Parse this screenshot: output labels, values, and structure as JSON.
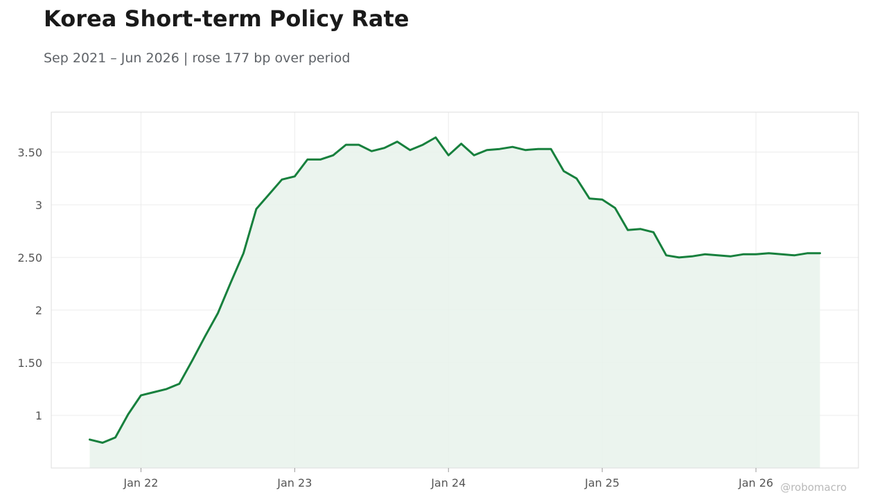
{
  "title": "Korea Short-term Policy Rate",
  "subtitle": "Sep 2021 – Jun 2026 | rose 177 bp over period",
  "credit": "@robomacro",
  "colors": {
    "line": "#17803d",
    "fill": "#e9f3ec",
    "grid": "#ececec",
    "frame": "#dddddd"
  },
  "chart_data": {
    "type": "area",
    "title": "Korea Short-term Policy Rate",
    "subtitle": "Sep 2021 – Jun 2026 | rose 177 bp over period",
    "xlabel": "",
    "ylabel": "",
    "grid": true,
    "legend": "none",
    "ylim": [
      0.5,
      3.88
    ],
    "xlim": [
      "2021-06",
      "2026-09"
    ],
    "y_ticks": [
      {
        "value": 1,
        "label": "1"
      },
      {
        "value": 1.5,
        "label": "1.50"
      },
      {
        "value": 2,
        "label": "2"
      },
      {
        "value": 2.5,
        "label": "2.50"
      },
      {
        "value": 3,
        "label": "3"
      },
      {
        "value": 3.5,
        "label": "3.50"
      }
    ],
    "x_ticks": [
      {
        "value": "2022-01",
        "label": "Jan 22"
      },
      {
        "value": "2023-01",
        "label": "Jan 23"
      },
      {
        "value": "2024-01",
        "label": "Jan 24"
      },
      {
        "value": "2025-01",
        "label": "Jan 25"
      },
      {
        "value": "2026-01",
        "label": "Jan 26"
      }
    ],
    "series": [
      {
        "x": [
          "2021-09",
          "2021-10",
          "2021-11",
          "2021-12",
          "2022-01",
          "2022-02",
          "2022-03",
          "2022-04",
          "2022-05",
          "2022-06",
          "2022-07",
          "2022-08",
          "2022-09",
          "2022-10",
          "2022-11",
          "2022-12",
          "2023-01",
          "2023-02",
          "2023-03",
          "2023-04",
          "2023-05",
          "2023-06",
          "2023-07",
          "2023-08",
          "2023-09",
          "2023-10",
          "2023-11",
          "2023-12",
          "2024-01",
          "2024-02",
          "2024-03",
          "2024-04",
          "2024-05",
          "2024-06",
          "2024-07",
          "2024-08",
          "2024-09",
          "2024-10",
          "2024-11",
          "2024-12",
          "2025-01",
          "2025-02",
          "2025-03",
          "2025-04",
          "2025-05",
          "2025-06",
          "2025-07",
          "2025-08",
          "2025-09",
          "2025-10",
          "2025-11",
          "2025-12",
          "2026-01",
          "2026-02",
          "2026-03",
          "2026-04",
          "2026-05",
          "2026-06"
        ],
        "y": [
          0.77,
          0.74,
          0.79,
          1.01,
          1.19,
          1.22,
          1.25,
          1.3,
          1.52,
          1.75,
          1.97,
          2.26,
          2.54,
          2.96,
          3.1,
          3.24,
          3.27,
          3.43,
          3.43,
          3.47,
          3.57,
          3.57,
          3.51,
          3.54,
          3.6,
          3.52,
          3.57,
          3.64,
          3.47,
          3.58,
          3.47,
          3.52,
          3.53,
          3.55,
          3.52,
          3.53,
          3.53,
          3.32,
          3.25,
          3.06,
          3.05,
          2.97,
          2.76,
          2.77,
          2.74,
          2.52,
          2.5,
          2.51,
          2.53,
          2.52,
          2.51,
          2.53,
          2.53,
          2.54,
          2.53,
          2.52,
          2.54,
          2.54
        ]
      }
    ]
  }
}
